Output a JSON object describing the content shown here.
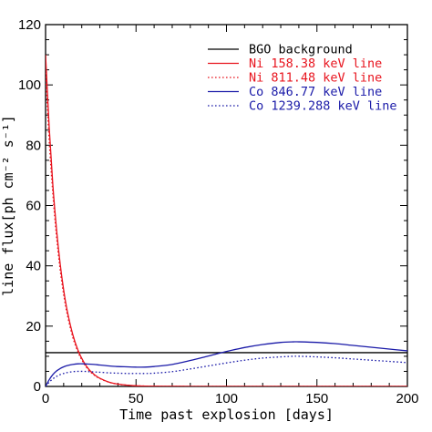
{
  "chart_data": {
    "type": "line",
    "xlabel": "Time past explosion [days]",
    "ylabel": "line flux[ph cm⁻² s⁻¹]",
    "xlim": [
      0,
      200
    ],
    "ylim": [
      0,
      120
    ],
    "xticks": [
      0,
      50,
      100,
      150,
      200
    ],
    "yticks": [
      0,
      20,
      40,
      60,
      80,
      100,
      120
    ],
    "grid": false,
    "legend_position": "top-right",
    "x": [
      0,
      2,
      4,
      6,
      8,
      10,
      12,
      15,
      18,
      21,
      24,
      27,
      30,
      35,
      40,
      45,
      50,
      55,
      60,
      70,
      80,
      90,
      100,
      110,
      120,
      130,
      137,
      140,
      150,
      160,
      170,
      180,
      190,
      200
    ],
    "series": [
      {
        "name": "BGO background",
        "color": "#000000",
        "dash": "solid",
        "values": [
          11.2,
          11.2,
          11.2,
          11.2,
          11.2,
          11.2,
          11.2,
          11.2,
          11.2,
          11.2,
          11.2,
          11.2,
          11.2,
          11.2,
          11.2,
          11.2,
          11.2,
          11.2,
          11.2,
          11.2,
          11.2,
          11.2,
          11.2,
          11.2,
          11.2,
          11.2,
          11.2,
          11.2,
          11.2,
          11.2,
          11.2,
          11.2,
          11.2,
          11.2
        ]
      },
      {
        "name": "Ni 158.38 keV line",
        "color": "#e8141e",
        "dash": "solid",
        "values": [
          110.0,
          86.0,
          67.0,
          52.5,
          41.0,
          32.0,
          25.0,
          17.3,
          11.9,
          8.2,
          5.6,
          3.9,
          2.7,
          1.45,
          0.78,
          0.42,
          0.23,
          0.12,
          0.07,
          0.02,
          0.01,
          0,
          0,
          0,
          0,
          0,
          0,
          0,
          0,
          0,
          0,
          0,
          0,
          0
        ]
      },
      {
        "name": "Ni 811.48 keV line",
        "color": "#e8141e",
        "dash": "dotted",
        "values": [
          104.0,
          81.5,
          64.0,
          50.0,
          39.0,
          30.5,
          23.8,
          16.4,
          11.3,
          7.8,
          5.3,
          3.7,
          2.6,
          1.4,
          0.74,
          0.4,
          0.22,
          0.12,
          0.06,
          0.02,
          0.01,
          0,
          0,
          0,
          0,
          0,
          0,
          0,
          0,
          0,
          0,
          0,
          0,
          0
        ]
      },
      {
        "name": "Co 846.77 keV line",
        "color": "#1a1aa8",
        "dash": "solid",
        "values": [
          0,
          2.2,
          3.9,
          5.1,
          5.9,
          6.5,
          6.9,
          7.3,
          7.5,
          7.5,
          7.4,
          7.3,
          7.1,
          6.8,
          6.6,
          6.5,
          6.4,
          6.4,
          6.6,
          7.3,
          8.6,
          10.1,
          11.6,
          12.9,
          13.9,
          14.6,
          14.8,
          14.8,
          14.6,
          14.2,
          13.6,
          13.0,
          12.4,
          11.8
        ]
      },
      {
        "name": "Co 1239.288 keV line",
        "color": "#1a1aa8",
        "dash": "dotted",
        "values": [
          0,
          1.4,
          2.5,
          3.3,
          3.9,
          4.3,
          4.6,
          4.9,
          5.0,
          5.0,
          4.9,
          4.8,
          4.7,
          4.5,
          4.4,
          4.3,
          4.3,
          4.3,
          4.4,
          4.9,
          5.8,
          6.8,
          7.8,
          8.7,
          9.4,
          9.8,
          10.0,
          10.0,
          9.8,
          9.5,
          9.1,
          8.7,
          8.3,
          7.9
        ]
      }
    ]
  }
}
